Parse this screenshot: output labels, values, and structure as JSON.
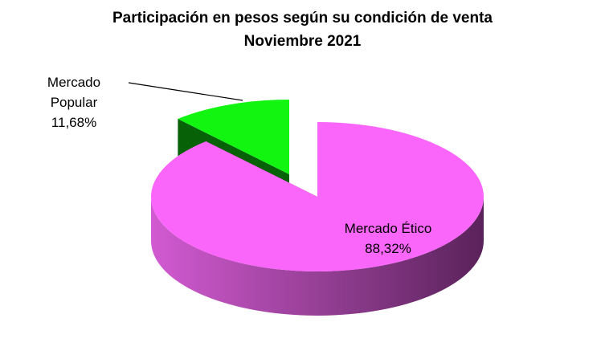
{
  "chart_data": {
    "type": "pie3d",
    "title": "Participación en pesos según su condición de venta",
    "subtitle": "Noviembre 2021",
    "categories": [
      "Mercado Ético",
      "Mercado Popular"
    ],
    "values": [
      88.32,
      11.68
    ],
    "value_labels": [
      "88,32%",
      "11,68%"
    ],
    "colors": [
      "#fa66fa",
      "#11f511"
    ]
  }
}
